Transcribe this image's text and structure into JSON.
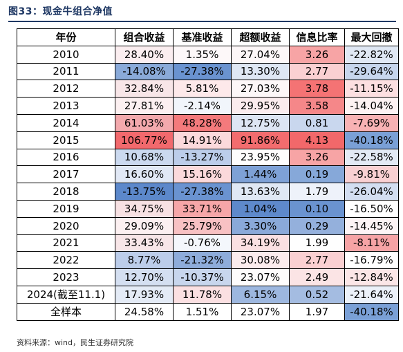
{
  "title": "图33：现金牛组合净值",
  "source": "资料来源：wind，民生证券研究院",
  "columns": [
    "年份",
    "组合收益",
    "基准收益",
    "超额收益",
    "信息比率",
    "最大回撤"
  ],
  "rows": [
    {
      "year": "2010",
      "cells": [
        {
          "v": "28.40%",
          "bg": "#fbeef0"
        },
        {
          "v": "1.35%",
          "bg": "#fdf8f9"
        },
        {
          "v": "27.04%",
          "bg": "#fdf7f8"
        },
        {
          "v": "3.26",
          "bg": "#f7a4a5"
        },
        {
          "v": "-22.82%",
          "bg": "#e0e8f4"
        }
      ]
    },
    {
      "year": "2011",
      "cells": [
        {
          "v": "-14.08%",
          "bg": "#8aaad9"
        },
        {
          "v": "-27.38%",
          "bg": "#6a93d0"
        },
        {
          "v": "13.30%",
          "bg": "#dfe7f4"
        },
        {
          "v": "2.77",
          "bg": "#fad0d2"
        },
        {
          "v": "-29.64%",
          "bg": "#c7d6ed"
        }
      ]
    },
    {
      "year": "2012",
      "cells": [
        {
          "v": "32.84%",
          "bg": "#f8e6e8"
        },
        {
          "v": "5.81%",
          "bg": "#fde9ea"
        },
        {
          "v": "27.03%",
          "bg": "#fdf7f8"
        },
        {
          "v": "3.78",
          "bg": "#f47374"
        },
        {
          "v": "-11.15%",
          "bg": "#fcdfe1"
        }
      ]
    },
    {
      "year": "2013",
      "cells": [
        {
          "v": "27.81%",
          "bg": "#fcf0f1"
        },
        {
          "v": "-2.14%",
          "bg": "#f1f5fb"
        },
        {
          "v": "29.95%",
          "bg": "#fbecee"
        },
        {
          "v": "3.58",
          "bg": "#f58789"
        },
        {
          "v": "-14.04%",
          "bg": "#fdf2f3"
        }
      ]
    },
    {
      "year": "2014",
      "cells": [
        {
          "v": "61.03%",
          "bg": "#f3a9ad"
        },
        {
          "v": "48.28%",
          "bg": "#f47a7c"
        },
        {
          "v": "12.75%",
          "bg": "#dde5f3"
        },
        {
          "v": "0.81",
          "bg": "#c9d7ee"
        },
        {
          "v": "-7.69%",
          "bg": "#f8b2b4"
        }
      ]
    },
    {
      "year": "2015",
      "cells": [
        {
          "v": "106.77%",
          "bg": "#f2696d"
        },
        {
          "v": "14.91%",
          "bg": "#fbd9db"
        },
        {
          "v": "91.86%",
          "bg": "#f36c6e"
        },
        {
          "v": "4.13",
          "bg": "#f2686a"
        },
        {
          "v": "-40.18%",
          "bg": "#7aa0d6"
        }
      ]
    },
    {
      "year": "2016",
      "cells": [
        {
          "v": "10.68%",
          "bg": "#cbd9ef"
        },
        {
          "v": "-13.27%",
          "bg": "#bccdea"
        },
        {
          "v": "23.95%",
          "bg": "#fefdfd"
        },
        {
          "v": "3.26",
          "bg": "#f7a4a5"
        },
        {
          "v": "-22.58%",
          "bg": "#e3eaf5"
        }
      ]
    },
    {
      "year": "2017",
      "cells": [
        {
          "v": "16.60%",
          "bg": "#e1e8f5"
        },
        {
          "v": "15.16%",
          "bg": "#fbd9db"
        },
        {
          "v": "1.44%",
          "bg": "#7ea1d6"
        },
        {
          "v": "0.19",
          "bg": "#86a8d9"
        },
        {
          "v": "-9.81%",
          "bg": "#f9d0d2"
        }
      ]
    },
    {
      "year": "2018",
      "cells": [
        {
          "v": "-13.75%",
          "bg": "#5c88cb"
        },
        {
          "v": "-27.38%",
          "bg": "#6a93d0"
        },
        {
          "v": "13.63%",
          "bg": "#e0e8f4"
        },
        {
          "v": "1.79",
          "bg": "#eef2fa"
        },
        {
          "v": "-26.04%",
          "bg": "#d3def1"
        }
      ]
    },
    {
      "year": "2019",
      "cells": [
        {
          "v": "34.75%",
          "bg": "#f7e1e3"
        },
        {
          "v": "33.71%",
          "bg": "#f6a6a8"
        },
        {
          "v": "1.04%",
          "bg": "#5e89cb"
        },
        {
          "v": "0.10",
          "bg": "#6a93d0"
        },
        {
          "v": "-16.50%",
          "bg": "#ffffff"
        }
      ]
    },
    {
      "year": "2020",
      "cells": [
        {
          "v": "29.09%",
          "bg": "#fcf0f1"
        },
        {
          "v": "25.79%",
          "bg": "#f8c1c3"
        },
        {
          "v": "3.30%",
          "bg": "#8aa9d9"
        },
        {
          "v": "0.29",
          "bg": "#94b0dc"
        },
        {
          "v": "-14.45%",
          "bg": "#fdf4f5"
        }
      ]
    },
    {
      "year": "2021",
      "cells": [
        {
          "v": "33.43%",
          "bg": "#f8e6e8"
        },
        {
          "v": "-0.76%",
          "bg": "#f4f7fc"
        },
        {
          "v": "34.19%",
          "bg": "#fae0e2"
        },
        {
          "v": "1.99",
          "bg": "#fefefe"
        },
        {
          "v": "-8.11%",
          "bg": "#f6a3a5"
        }
      ]
    },
    {
      "year": "2022",
      "cells": [
        {
          "v": "8.77%",
          "bg": "#bccdea"
        },
        {
          "v": "-21.32%",
          "bg": "#8eacda"
        },
        {
          "v": "30.08%",
          "bg": "#fbeced"
        },
        {
          "v": "2.77",
          "bg": "#fad0d2"
        },
        {
          "v": "-16.79%",
          "bg": "#ffffff"
        }
      ]
    },
    {
      "year": "2023",
      "cells": [
        {
          "v": "12.70%",
          "bg": "#d4dff1"
        },
        {
          "v": "-10.37%",
          "bg": "#c8d6ed"
        },
        {
          "v": "23.07%",
          "bg": "#fefcfc"
        },
        {
          "v": "2.49",
          "bg": "#fbe4e5"
        },
        {
          "v": "-12.84%",
          "bg": "#fbe6e7"
        }
      ]
    },
    {
      "year": "2024(截至11.1)",
      "cells": [
        {
          "v": "17.93%",
          "bg": "#e4ebf6"
        },
        {
          "v": "11.78%",
          "bg": "#fbe0e2"
        },
        {
          "v": "6.15%",
          "bg": "#9db7df"
        },
        {
          "v": "0.52",
          "bg": "#a4bce1"
        },
        {
          "v": "-21.64%",
          "bg": "#ecf1f9"
        }
      ]
    },
    {
      "year": "全样本",
      "cells": [
        {
          "v": "24.58%",
          "bg": "#ffffff"
        },
        {
          "v": "1.51%",
          "bg": "#ffffff"
        },
        {
          "v": "23.07%",
          "bg": "#ffffff"
        },
        {
          "v": "1.97",
          "bg": "#ffffff"
        },
        {
          "v": "-40.18%",
          "bg": "#7aa0d6"
        }
      ]
    }
  ]
}
